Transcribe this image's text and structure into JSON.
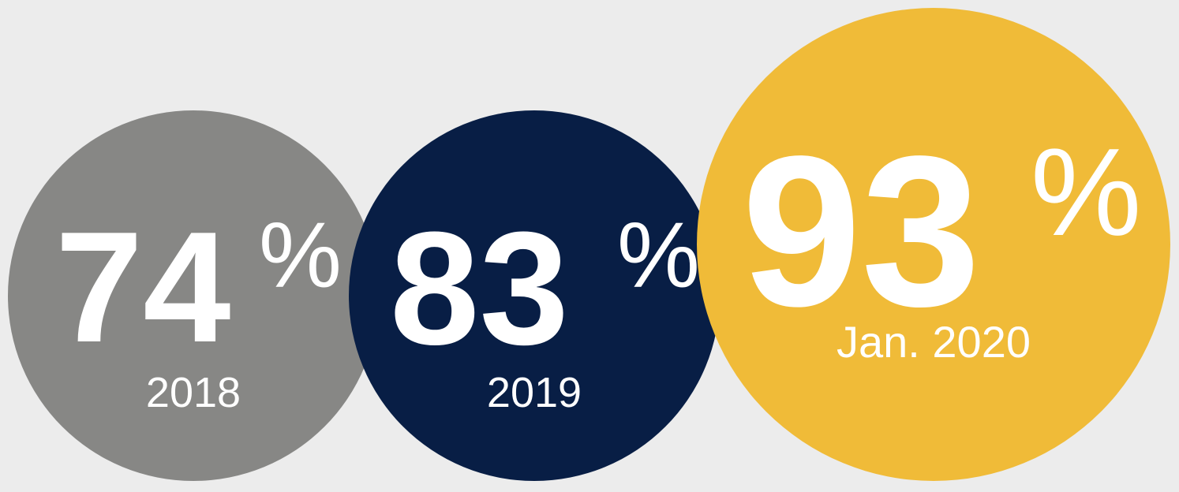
{
  "items": [
    {
      "value": "74",
      "unit": "%",
      "label": "2018"
    },
    {
      "value": "83",
      "unit": "%",
      "label": "2019"
    },
    {
      "value": "93",
      "unit": "%",
      "label": "Jan. 2020"
    }
  ]
}
